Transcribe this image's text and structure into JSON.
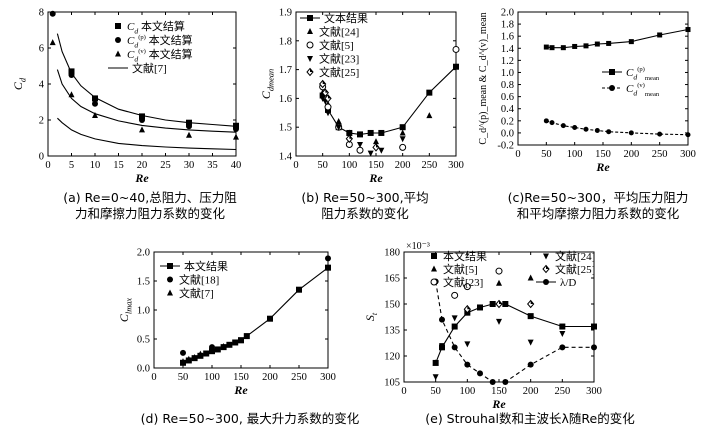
{
  "chart_data": [
    {
      "id": "a",
      "type": "line",
      "ylabel": "C_d",
      "xlabel": "Re",
      "xlim": [
        0,
        40
      ],
      "ylim": [
        0,
        8
      ],
      "xticks": [
        0,
        5,
        10,
        15,
        20,
        25,
        30,
        35,
        40
      ],
      "yticks": [
        0,
        2,
        4,
        6,
        8
      ],
      "legend": [
        {
          "sym": "square",
          "label": "C_d 本文结算"
        },
        {
          "sym": "circle",
          "label": "C_d^(p) 本文结算"
        },
        {
          "sym": "triangle",
          "label": "C_d^(v) 本文结算"
        },
        {
          "sym": "line",
          "label": "文献[7]"
        }
      ],
      "series": [
        {
          "name": "C_d",
          "marker": "square",
          "x": [
            5,
            10,
            20,
            30,
            40
          ],
          "y": [
            4.7,
            3.2,
            2.2,
            1.85,
            1.68
          ]
        },
        {
          "name": "C_d^(p)",
          "marker": "circle",
          "x": [
            1,
            5,
            10,
            20,
            30,
            40
          ],
          "y": [
            7.9,
            4.5,
            2.9,
            2.0,
            1.65,
            1.5
          ]
        },
        {
          "name": "C_d^(v)",
          "marker": "triangle",
          "x": [
            1,
            5,
            10,
            20,
            30,
            40
          ],
          "y": [
            6.3,
            3.4,
            2.25,
            1.45,
            1.15,
            1.05
          ]
        },
        {
          "name": "文献[7] Cd",
          "marker": "none",
          "x": [
            2,
            3,
            5,
            7,
            10,
            15,
            20,
            25,
            30,
            35,
            40
          ],
          "y": [
            6.8,
            5.8,
            4.6,
            3.9,
            3.25,
            2.6,
            2.25,
            2.0,
            1.85,
            1.75,
            1.65
          ]
        },
        {
          "name": "文献[7] Cdp",
          "marker": "none",
          "x": [
            2,
            3,
            5,
            7,
            10,
            15,
            20,
            25,
            30,
            35,
            40
          ],
          "y": [
            4.8,
            4.0,
            3.2,
            2.75,
            2.35,
            1.95,
            1.7,
            1.55,
            1.45,
            1.38,
            1.32
          ]
        },
        {
          "name": "文献[7] Cdv",
          "marker": "none",
          "x": [
            2,
            3,
            5,
            7,
            10,
            15,
            20,
            25,
            30,
            35,
            40
          ],
          "y": [
            2.1,
            1.85,
            1.45,
            1.2,
            0.95,
            0.7,
            0.58,
            0.5,
            0.44,
            0.4,
            0.36
          ]
        }
      ]
    },
    {
      "id": "b",
      "type": "line",
      "ylabel": "C_dmean",
      "xlabel": "Re",
      "xlim": [
        0,
        300
      ],
      "ylim": [
        1.4,
        1.9
      ],
      "xticks": [
        0,
        50,
        100,
        150,
        200,
        250,
        300
      ],
      "yticks": [
        1.4,
        1.5,
        1.6,
        1.7,
        1.8,
        1.9
      ],
      "legend": [
        {
          "sym": "line-square",
          "label": "文本结果"
        },
        {
          "sym": "triangle",
          "label": "文献[24]"
        },
        {
          "sym": "circle-open",
          "label": "文献[5]"
        },
        {
          "sym": "triangle-down",
          "label": "文献[23]"
        },
        {
          "sym": "diamond",
          "label": "文献[25]"
        }
      ],
      "series": [
        {
          "name": "文本结果",
          "marker": "square",
          "x": [
            50,
            60,
            80,
            100,
            120,
            140,
            160,
            200,
            250,
            300
          ],
          "y": [
            1.61,
            1.56,
            1.5,
            1.48,
            1.475,
            1.48,
            1.48,
            1.5,
            1.62,
            1.71
          ]
        },
        {
          "name": "文献[24]",
          "marker": "triangle",
          "x": [
            50,
            60,
            80,
            100,
            150,
            200,
            250
          ],
          "y": [
            1.62,
            1.58,
            1.52,
            1.48,
            1.45,
            1.48,
            1.54
          ]
        },
        {
          "name": "文献[5]",
          "marker": "circle-open",
          "x": [
            50,
            55,
            60,
            80,
            100,
            120,
            200,
            300
          ],
          "y": [
            1.64,
            1.6,
            1.57,
            1.5,
            1.44,
            1.42,
            1.43,
            1.77
          ]
        },
        {
          "name": "文献[23]",
          "marker": "triangle-down",
          "x": [
            50,
            55,
            60,
            80,
            100,
            120,
            140,
            160,
            200
          ],
          "y": [
            1.6,
            1.59,
            1.55,
            1.5,
            1.47,
            1.44,
            1.41,
            1.42,
            1.46
          ]
        },
        {
          "name": "文献[25]",
          "marker": "diamond",
          "x": [
            50,
            55,
            60,
            100,
            150
          ],
          "y": [
            1.65,
            1.62,
            1.6,
            1.46,
            1.43
          ]
        }
      ]
    },
    {
      "id": "c",
      "type": "line",
      "ylabel": "C_d^(p)_mean & C_d^(v)_mean",
      "xlabel": "Re",
      "xlim": [
        0,
        300
      ],
      "ylim": [
        -0.2,
        2.0
      ],
      "xticks": [
        0,
        50,
        100,
        150,
        200,
        250,
        300
      ],
      "yticks": [
        -0.2,
        0,
        0.2,
        0.4,
        0.6,
        0.8,
        1.0,
        1.2,
        1.4,
        1.6,
        1.8,
        2.0
      ],
      "legend": [
        {
          "sym": "line-square",
          "label": "C_d^(p)_mean"
        },
        {
          "sym": "dash-circle",
          "label": "C_d^(v)_mean"
        }
      ],
      "series": [
        {
          "name": "C_d^(p)_mean",
          "marker": "square",
          "x": [
            50,
            60,
            80,
            100,
            120,
            140,
            160,
            200,
            250,
            300
          ],
          "y": [
            1.42,
            1.41,
            1.41,
            1.43,
            1.44,
            1.47,
            1.48,
            1.51,
            1.62,
            1.71
          ]
        },
        {
          "name": "C_d^(v)_mean",
          "marker": "circle",
          "x": [
            50,
            60,
            80,
            100,
            120,
            140,
            160,
            200,
            250,
            300
          ],
          "y": [
            0.2,
            0.17,
            0.12,
            0.09,
            0.06,
            0.04,
            0.02,
            0.0,
            -0.02,
            -0.03
          ]
        }
      ]
    },
    {
      "id": "d",
      "type": "line",
      "ylabel": "C_lmax",
      "xlabel": "Re",
      "xlim": [
        0,
        300
      ],
      "ylim": [
        0,
        2.0
      ],
      "xticks": [
        0,
        50,
        100,
        150,
        200,
        250,
        300
      ],
      "yticks": [
        0,
        0.5,
        1.0,
        1.5,
        2.0
      ],
      "legend": [
        {
          "sym": "line-square",
          "label": "本文结果"
        },
        {
          "sym": "circle",
          "label": "文献[18]"
        },
        {
          "sym": "triangle",
          "label": "文献[7]"
        }
      ],
      "series": [
        {
          "name": "本文结果",
          "marker": "square",
          "x": [
            50,
            60,
            70,
            80,
            90,
            100,
            110,
            120,
            130,
            140,
            150,
            160,
            200,
            250,
            300
          ],
          "y": [
            0.09,
            0.13,
            0.17,
            0.21,
            0.25,
            0.29,
            0.32,
            0.36,
            0.4,
            0.44,
            0.48,
            0.55,
            0.85,
            1.35,
            1.73
          ]
        },
        {
          "name": "文献[18]",
          "marker": "circle",
          "x": [
            50,
            100,
            300
          ],
          "y": [
            0.26,
            0.36,
            1.89
          ]
        },
        {
          "name": "文献[7]",
          "marker": "triangle",
          "x": [
            50,
            60,
            70,
            80,
            100,
            120,
            150
          ],
          "y": [
            0.11,
            0.15,
            0.18,
            0.24,
            0.3,
            0.37,
            0.47
          ]
        }
      ]
    },
    {
      "id": "e",
      "type": "line",
      "ylabel": "S_t",
      "xlabel": "Re",
      "ylabel_scale": "×10⁻³",
      "xlim": [
        0,
        300
      ],
      "ylim": [
        105,
        180
      ],
      "xticks": [
        0,
        50,
        100,
        150,
        200,
        250,
        300
      ],
      "yticks": [
        105,
        120,
        135,
        150,
        165,
        180
      ],
      "legend": [
        {
          "sym": "square",
          "label": "本文结果"
        },
        {
          "sym": "triangle-down",
          "label": "文献[24]"
        },
        {
          "sym": "triangle",
          "label": "文献[5]"
        },
        {
          "sym": "diamond",
          "label": "文献[25]"
        },
        {
          "sym": "circle-open",
          "label": "文献[23]"
        },
        {
          "sym": "line-circle",
          "label": "λ/D"
        }
      ],
      "series": [
        {
          "name": "本文结果",
          "marker": "square",
          "x": [
            50,
            60,
            80,
            100,
            120,
            140,
            160,
            200,
            250,
            300
          ],
          "y": [
            116,
            125,
            137,
            145,
            148,
            150,
            150,
            143,
            137,
            137
          ]
        },
        {
          "name": "λ/D",
          "marker": "circle",
          "x": [
            50,
            60,
            80,
            100,
            120,
            140,
            160,
            200,
            250,
            300
          ],
          "y": [
            163,
            141,
            125,
            115,
            110,
            105,
            105,
            115,
            125,
            125
          ]
        },
        {
          "name": "文献[24]",
          "marker": "triangle-down",
          "x": [
            50,
            60,
            80,
            100,
            150,
            200,
            250
          ],
          "y": [
            108,
            126,
            142,
            127,
            140,
            128,
            133
          ]
        },
        {
          "name": "文献[5]",
          "marker": "triangle",
          "x": [
            50,
            100,
            150,
            200
          ],
          "y": [
            116,
            146,
            162,
            165
          ]
        },
        {
          "name": "文献[25]",
          "marker": "diamond",
          "x": [
            100,
            150,
            200
          ],
          "y": [
            147,
            150,
            150
          ]
        },
        {
          "name": "文献[23]",
          "marker": "circle-open",
          "x": [
            80,
            100,
            150
          ],
          "y": [
            155,
            160,
            169
          ]
        }
      ]
    }
  ],
  "captions": {
    "a": [
      "(a) Re=0~40,总阻力、压力阻",
      "力和摩擦力阻力系数的变化"
    ],
    "b": [
      "(b) Re=50~300,平均",
      "阻力系数的变化"
    ],
    "c": [
      "(c)Re=50~300，平均压力阻力",
      "和平均摩擦力阻力系数的变化"
    ],
    "d": [
      "(d) Re=50~300, 最大升力系数的变化"
    ],
    "e": [
      "(e) Strouhal数和主波长λ随Re的变化"
    ]
  }
}
